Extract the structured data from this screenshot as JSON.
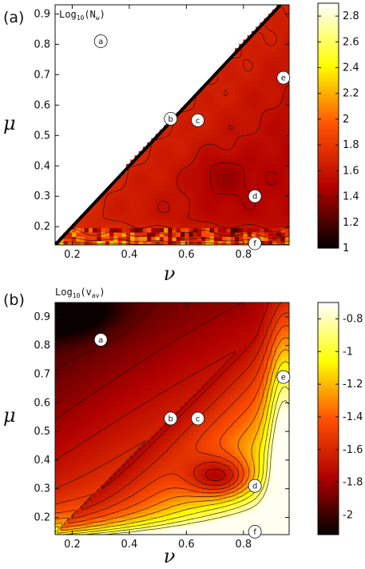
{
  "chart_data": [
    {
      "type": "heatmap",
      "panel_label": "(a)",
      "title": "Log",
      "title_base": "10",
      "title_arg": "(N",
      "title_arg_sub": "w",
      "title_arg_end": ")",
      "xlabel": "ν",
      "ylabel": "μ",
      "xlim": [
        0.14,
        0.96
      ],
      "ylim": [
        0.14,
        0.93
      ],
      "xticks": [
        "0.2",
        "0.4",
        "0.6",
        "0.8"
      ],
      "xtick_values": [
        0.2,
        0.4,
        0.6,
        0.8
      ],
      "yticks": [
        "0.2",
        "0.3",
        "0.4",
        "0.5",
        "0.6",
        "0.7",
        "0.8",
        "0.9"
      ],
      "ytick_values": [
        0.2,
        0.3,
        0.4,
        0.5,
        0.6,
        0.7,
        0.8,
        0.9
      ],
      "colorbar_range": [
        1.0,
        2.9
      ],
      "colorbar_ticks": [
        "1",
        "1.2",
        "1.4",
        "1.6",
        "1.8",
        "2",
        "2.2",
        "2.4",
        "2.6",
        "2.8"
      ],
      "colorbar_tick_values": [
        1.0,
        1.2,
        1.4,
        1.6,
        1.8,
        2.0,
        2.2,
        2.4,
        2.6,
        2.8
      ],
      "colormap": [
        "#000000",
        "#b20000",
        "#ff5000",
        "#ffff00",
        "#ffffff"
      ],
      "region": "mu < nu",
      "markers": [
        {
          "label": "a",
          "x": 0.3,
          "y": 0.81
        },
        {
          "label": "b",
          "x": 0.545,
          "y": 0.555
        },
        {
          "label": "c",
          "x": 0.64,
          "y": 0.55
        },
        {
          "label": "d",
          "x": 0.84,
          "y": 0.3
        },
        {
          "label": "e",
          "x": 0.94,
          "y": 0.69
        },
        {
          "label": "f",
          "x": 0.84,
          "y": 0.145
        }
      ]
    },
    {
      "type": "heatmap",
      "panel_label": "(b)",
      "title": "Log",
      "title_base": "10",
      "title_arg": "(v",
      "title_arg_sub": "av",
      "title_arg_end": ")",
      "xlabel": "ν",
      "ylabel": "μ",
      "xlim": [
        0.14,
        0.96
      ],
      "ylim": [
        0.14,
        0.95
      ],
      "xticks": [
        "0.2",
        "0.4",
        "0.6",
        "0.8"
      ],
      "xtick_values": [
        0.2,
        0.4,
        0.6,
        0.8
      ],
      "yticks": [
        "0.2",
        "0.3",
        "0.4",
        "0.5",
        "0.6",
        "0.7",
        "0.8",
        "0.9"
      ],
      "ytick_values": [
        0.2,
        0.3,
        0.4,
        0.5,
        0.6,
        0.7,
        0.8,
        0.9
      ],
      "colorbar_range": [
        -2.12,
        -0.7
      ],
      "colorbar_ticks": [
        "-0.8",
        "-1",
        "-1.2",
        "-1.4",
        "-1.6",
        "-1.8",
        "-2"
      ],
      "colorbar_tick_values": [
        -0.8,
        -1.0,
        -1.2,
        -1.4,
        -1.6,
        -1.8,
        -2.0
      ],
      "colormap": [
        "#000000",
        "#b20000",
        "#ff5000",
        "#ffff00",
        "#ffffff"
      ],
      "region": "full",
      "markers": [
        {
          "label": "a",
          "x": 0.3,
          "y": 0.82
        },
        {
          "label": "b",
          "x": 0.545,
          "y": 0.545
        },
        {
          "label": "c",
          "x": 0.64,
          "y": 0.545
        },
        {
          "label": "d",
          "x": 0.84,
          "y": 0.31
        },
        {
          "label": "e",
          "x": 0.94,
          "y": 0.69
        },
        {
          "label": "f",
          "x": 0.84,
          "y": 0.15
        }
      ]
    }
  ]
}
